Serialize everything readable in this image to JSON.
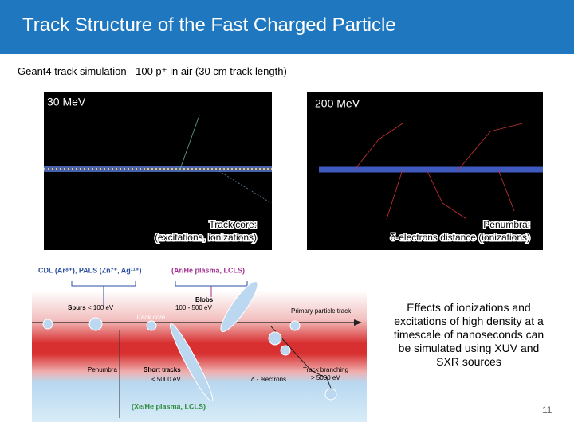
{
  "header": {
    "title": "Track Structure of the Fast Charged Particle"
  },
  "subtitle": "Geant4 track simulation - 100 p⁺ in air (30 cm track length)",
  "panels": [
    {
      "label": "30 MeV",
      "caption": [
        "Track core:",
        "(excitations, ionizations)"
      ]
    },
    {
      "label": "200 MeV",
      "caption": [
        "Penumbra:",
        "δ-electrons distance (ionizations)"
      ]
    }
  ],
  "diagram": {
    "sources_top": [
      "CDL (Ar⁸⁺), PALS (Zn⁷⁺, Ag¹¹⁺)",
      "(Ar/He plasma, LCLS)"
    ],
    "spurs": [
      "Spurs",
      "< 100 eV"
    ],
    "blobs": [
      "Blobs",
      "100 - 500 eV"
    ],
    "primary": "Primary particle track",
    "core": "Track core",
    "penumbra": "Penumbra",
    "short_tracks": [
      "Short tracks",
      "< 5000 eV"
    ],
    "delta": "δ - electrons",
    "branching": [
      "Track branching",
      "> 5000 eV"
    ],
    "source_bottom": "(Xe/He plasma, LCLS)"
  },
  "text": [
    "Effects of ionizations and",
    "excitations of high density at a",
    "timescale of nanoseconds can",
    "be simulated using XUV and",
    "SXR sources"
  ],
  "page_number": "11"
}
